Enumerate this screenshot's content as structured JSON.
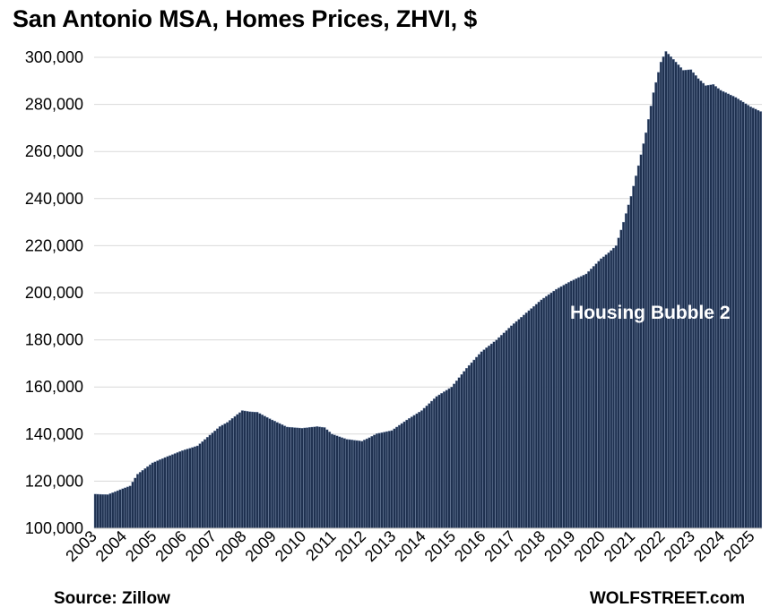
{
  "chart_data": {
    "type": "bar",
    "title": "San Antonio MSA, Homes Prices, ZHVI, $",
    "xlabel": "",
    "ylabel": "",
    "ylim": [
      100000,
      300000
    ],
    "yticks": [
      100000,
      120000,
      140000,
      160000,
      180000,
      200000,
      220000,
      240000,
      260000,
      280000,
      300000
    ],
    "ytick_labels": [
      "100,000",
      "120,000",
      "140,000",
      "160,000",
      "180,000",
      "200,000",
      "220,000",
      "240,000",
      "260,000",
      "280,000",
      "300,000"
    ],
    "xtick_labels": [
      "2003",
      "2004",
      "2005",
      "2006",
      "2007",
      "2008",
      "2009",
      "2010",
      "2011",
      "2012",
      "2013",
      "2014",
      "2015",
      "2016",
      "2017",
      "2018",
      "2019",
      "2020",
      "2021",
      "2022",
      "2023",
      "2024",
      "2025"
    ],
    "start": "2003-01",
    "frequency": "monthly",
    "grid": true,
    "bar_color": "#1f3150",
    "annotation": "Housing Bubble 2",
    "source": "Source: Zillow",
    "credit": "WOLFSTREET.com",
    "anchors": [
      [
        "2003-01",
        114500
      ],
      [
        "2003-06",
        114300
      ],
      [
        "2003-12",
        116800
      ],
      [
        "2004-03",
        118000
      ],
      [
        "2004-06",
        123000
      ],
      [
        "2004-12",
        127800
      ],
      [
        "2005-06",
        130500
      ],
      [
        "2005-12",
        133000
      ],
      [
        "2006-06",
        135000
      ],
      [
        "2006-12",
        140500
      ],
      [
        "2007-03",
        143200
      ],
      [
        "2007-06",
        145000
      ],
      [
        "2007-12",
        150000
      ],
      [
        "2008-03",
        149500
      ],
      [
        "2008-06",
        149300
      ],
      [
        "2008-12",
        146000
      ],
      [
        "2009-06",
        143000
      ],
      [
        "2009-12",
        142500
      ],
      [
        "2010-06",
        143200
      ],
      [
        "2010-09",
        142800
      ],
      [
        "2010-12",
        140000
      ],
      [
        "2011-06",
        137800
      ],
      [
        "2011-12",
        137000
      ],
      [
        "2012-03",
        138500
      ],
      [
        "2012-06",
        140200
      ],
      [
        "2012-12",
        141500
      ],
      [
        "2013-06",
        146000
      ],
      [
        "2013-12",
        150000
      ],
      [
        "2014-06",
        156000
      ],
      [
        "2014-12",
        160000
      ],
      [
        "2015-06",
        168000
      ],
      [
        "2015-12",
        175000
      ],
      [
        "2016-06",
        180000
      ],
      [
        "2016-12",
        186000
      ],
      [
        "2017-06",
        191500
      ],
      [
        "2017-12",
        197000
      ],
      [
        "2018-06",
        201500
      ],
      [
        "2018-12",
        205000
      ],
      [
        "2019-06",
        208000
      ],
      [
        "2019-12",
        214500
      ],
      [
        "2020-03",
        217000
      ],
      [
        "2020-06",
        220000
      ],
      [
        "2020-09",
        230000
      ],
      [
        "2020-12",
        241000
      ],
      [
        "2021-03",
        254000
      ],
      [
        "2021-06",
        268000
      ],
      [
        "2021-09",
        285000
      ],
      [
        "2021-12",
        298000
      ],
      [
        "2022-02",
        302500
      ],
      [
        "2022-06",
        298000
      ],
      [
        "2022-09",
        294500
      ],
      [
        "2022-12",
        294800
      ],
      [
        "2023-03",
        291000
      ],
      [
        "2023-06",
        288000
      ],
      [
        "2023-09",
        288500
      ],
      [
        "2023-12",
        286000
      ],
      [
        "2024-06",
        283000
      ],
      [
        "2024-12",
        279000
      ],
      [
        "2025-04",
        277000
      ]
    ]
  }
}
